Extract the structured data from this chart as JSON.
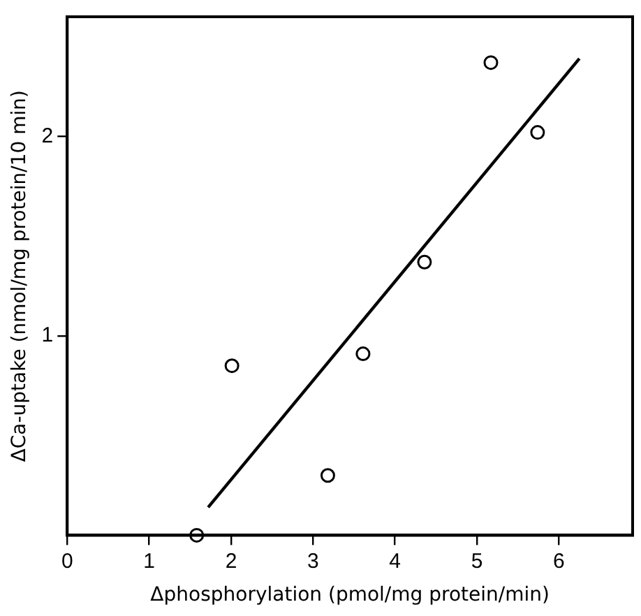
{
  "chart_data": {
    "type": "scatter",
    "xlabel": "Δphosphorylation (pmol/mg protein/min)",
    "ylabel": "ΔCa-uptake (nmol/mg protein/10 min)",
    "xlim": [
      0,
      6.9
    ],
    "xticks": [
      0,
      1,
      2,
      3,
      4,
      5,
      6
    ],
    "ylim": [
      0,
      2.6
    ],
    "yticks": [
      1,
      2
    ],
    "grid": false,
    "legend": false,
    "marker": "circle",
    "series": [
      {
        "color": "#000000",
        "x": [
          1.58,
          2.01,
          3.18,
          3.61,
          4.36,
          5.17,
          5.74
        ],
        "values": [
          0,
          0.85,
          0.3,
          0.91,
          1.37,
          2.37,
          2.02
        ]
      },
      {
        "type": "line",
        "color": "#000000",
        "x": [
          1.72,
          6.25
        ],
        "values": [
          0.14,
          2.39
        ],
        "marker": "none",
        "line_style": "solid"
      }
    ]
  }
}
